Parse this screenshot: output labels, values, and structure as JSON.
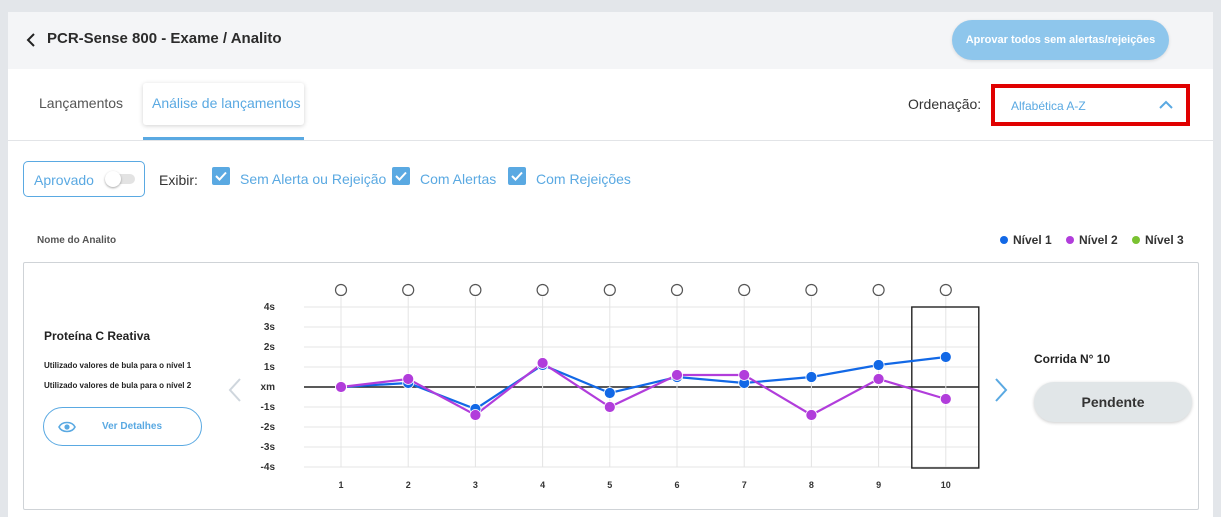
{
  "header": {
    "title": "PCR-Sense 800 - Exame / Analito",
    "approve_all_label": "Aprovar todos sem alertas/rejeições"
  },
  "tabs": [
    {
      "label": "Lançamentos",
      "active": false
    },
    {
      "label": "Análise de lançamentos",
      "active": true
    }
  ],
  "ordering": {
    "label": "Ordenação:",
    "value": "Alfabética A-Z"
  },
  "filters": {
    "aprovado_label": "Aprovado",
    "aprovado_on": false,
    "exibir_label": "Exibir:",
    "checkboxes": [
      {
        "label": "Sem Alerta ou Rejeição",
        "checked": true
      },
      {
        "label": "Com Alertas",
        "checked": true
      },
      {
        "label": "Com Rejeições",
        "checked": true
      }
    ]
  },
  "list": {
    "column_label": "Nome do Analito",
    "legend": [
      {
        "name": "Nível 1",
        "color": "#1268e6"
      },
      {
        "name": "Nível 2",
        "color": "#b13ddb"
      },
      {
        "name": "Nível 3",
        "color": "#7ac231"
      }
    ]
  },
  "analito": {
    "name": "Proteína C Reativa",
    "bula_lines": [
      "Utilizado valores de bula para o nível 1",
      "Utilizado valores de bula para o nível 2"
    ],
    "details_label": "Ver Detalhes",
    "run_label": "Corrida N° 10",
    "status_label": "Pendente"
  },
  "chart_data": {
    "type": "line",
    "x": [
      1,
      2,
      3,
      4,
      5,
      6,
      7,
      8,
      9,
      10
    ],
    "y_tick_labels": [
      "4s",
      "3s",
      "2s",
      "1s",
      "xm",
      "-1s",
      "-2s",
      "-3s",
      "-4s"
    ],
    "ylim": [
      -4,
      4
    ],
    "selected_run": 10,
    "series": [
      {
        "name": "Nível 1",
        "color": "#1268e6",
        "values": [
          0,
          0.2,
          -1.1,
          1.1,
          -0.3,
          0.5,
          0.2,
          0.5,
          1.1,
          1.5
        ]
      },
      {
        "name": "Nível 2",
        "color": "#b13ddb",
        "values": [
          0,
          0.4,
          -1.4,
          1.2,
          -1.0,
          0.6,
          0.6,
          -1.4,
          0.4,
          -0.6
        ]
      }
    ]
  }
}
